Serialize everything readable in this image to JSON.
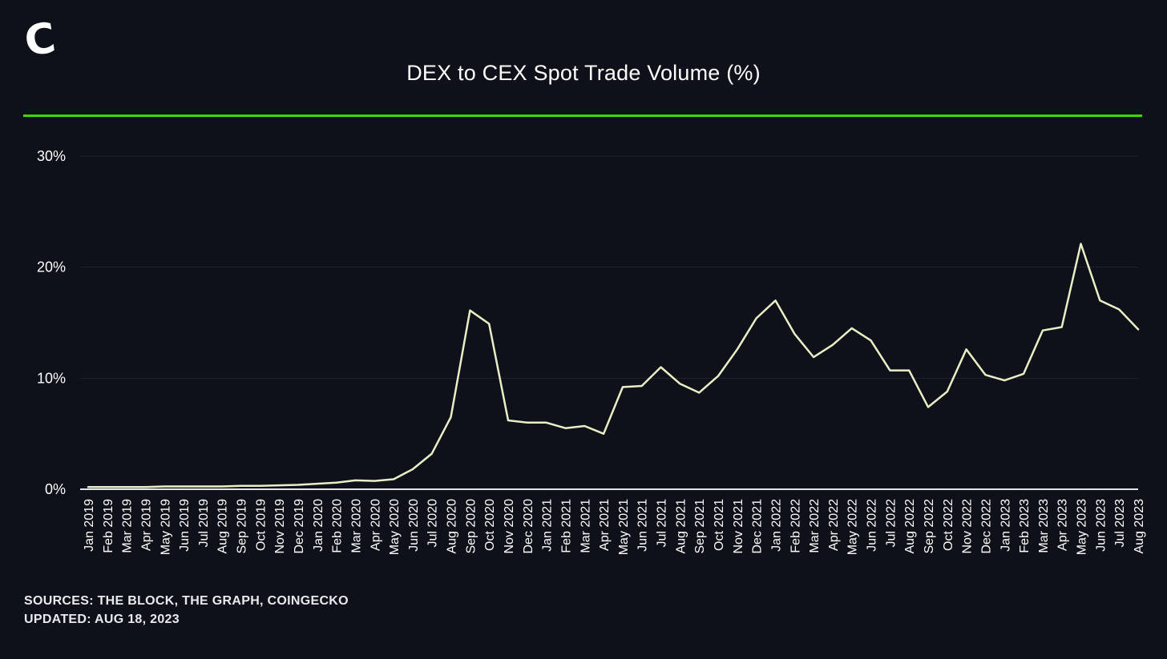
{
  "header": {
    "logo": "C",
    "title": "DEX to CEX Spot Trade Volume (%)"
  },
  "footer": {
    "sources": "SOURCES: THE BLOCK, THE GRAPH, COINGECKO",
    "updated": "UPDATED: AUG 18, 2023"
  },
  "colors": {
    "background": "#0F111A",
    "accent_green": "#3FD609",
    "series_line": "#E9EFC4",
    "grid": "#20232C",
    "zero_axis": "#E2E4E8",
    "text": "#FFFFFF"
  },
  "chart_data": {
    "type": "line",
    "title": "DEX to CEX Spot Trade Volume (%)",
    "xlabel": "",
    "ylabel": "",
    "ylim": [
      0,
      31.8
    ],
    "yticks": [
      0,
      10,
      20,
      30
    ],
    "ytick_labels": [
      "0%",
      "10%",
      "20%",
      "30%"
    ],
    "grid": "horizontal",
    "legend": "none",
    "categories": [
      "Jan 2019",
      "Feb 2019",
      "Mar 2019",
      "Apr 2019",
      "May 2019",
      "Jun 2019",
      "Jul 2019",
      "Aug 2019",
      "Sep 2019",
      "Oct 2019",
      "Nov 2019",
      "Dec 2019",
      "Jan 2020",
      "Feb 2020",
      "Mar 2020",
      "Apr 2020",
      "May 2020",
      "Jun 2020",
      "Jul 2020",
      "Aug 2020",
      "Sep 2020",
      "Oct 2020",
      "Nov 2020",
      "Dec 2020",
      "Jan 2021",
      "Feb 2021",
      "Mar 2021",
      "Apr 2021",
      "May 2021",
      "Jun 2021",
      "Jul 2021",
      "Aug 2021",
      "Sep 2021",
      "Oct 2021",
      "Nov 2021",
      "Dec 2021",
      "Jan 2022",
      "Feb 2022",
      "Mar 2022",
      "Apr 2022",
      "May 2022",
      "Jun 2022",
      "Jul 2022",
      "Aug 2022",
      "Sep 2022",
      "Oct 2022",
      "Nov 2022",
      "Dec 2022",
      "Jan 2023",
      "Feb 2023",
      "Mar 2023",
      "Apr 2023",
      "May 2023",
      "Jun 2023",
      "Jul 2023",
      "Aug 2023"
    ],
    "values": [
      0.2,
      0.2,
      0.2,
      0.2,
      0.25,
      0.25,
      0.25,
      0.25,
      0.3,
      0.3,
      0.35,
      0.4,
      0.5,
      0.6,
      0.8,
      0.75,
      0.9,
      1.8,
      3.2,
      6.5,
      16.1,
      14.9,
      6.2,
      6.0,
      6.0,
      5.5,
      5.7,
      5.0,
      9.2,
      9.3,
      11.0,
      9.5,
      8.7,
      10.2,
      12.6,
      15.4,
      17.0,
      14.0,
      11.9,
      13.0,
      14.5,
      13.4,
      10.7,
      10.7,
      7.4,
      8.8,
      12.6,
      10.3,
      9.8,
      10.4,
      14.3,
      14.6,
      22.1,
      17.0,
      16.2,
      14.4
    ]
  }
}
